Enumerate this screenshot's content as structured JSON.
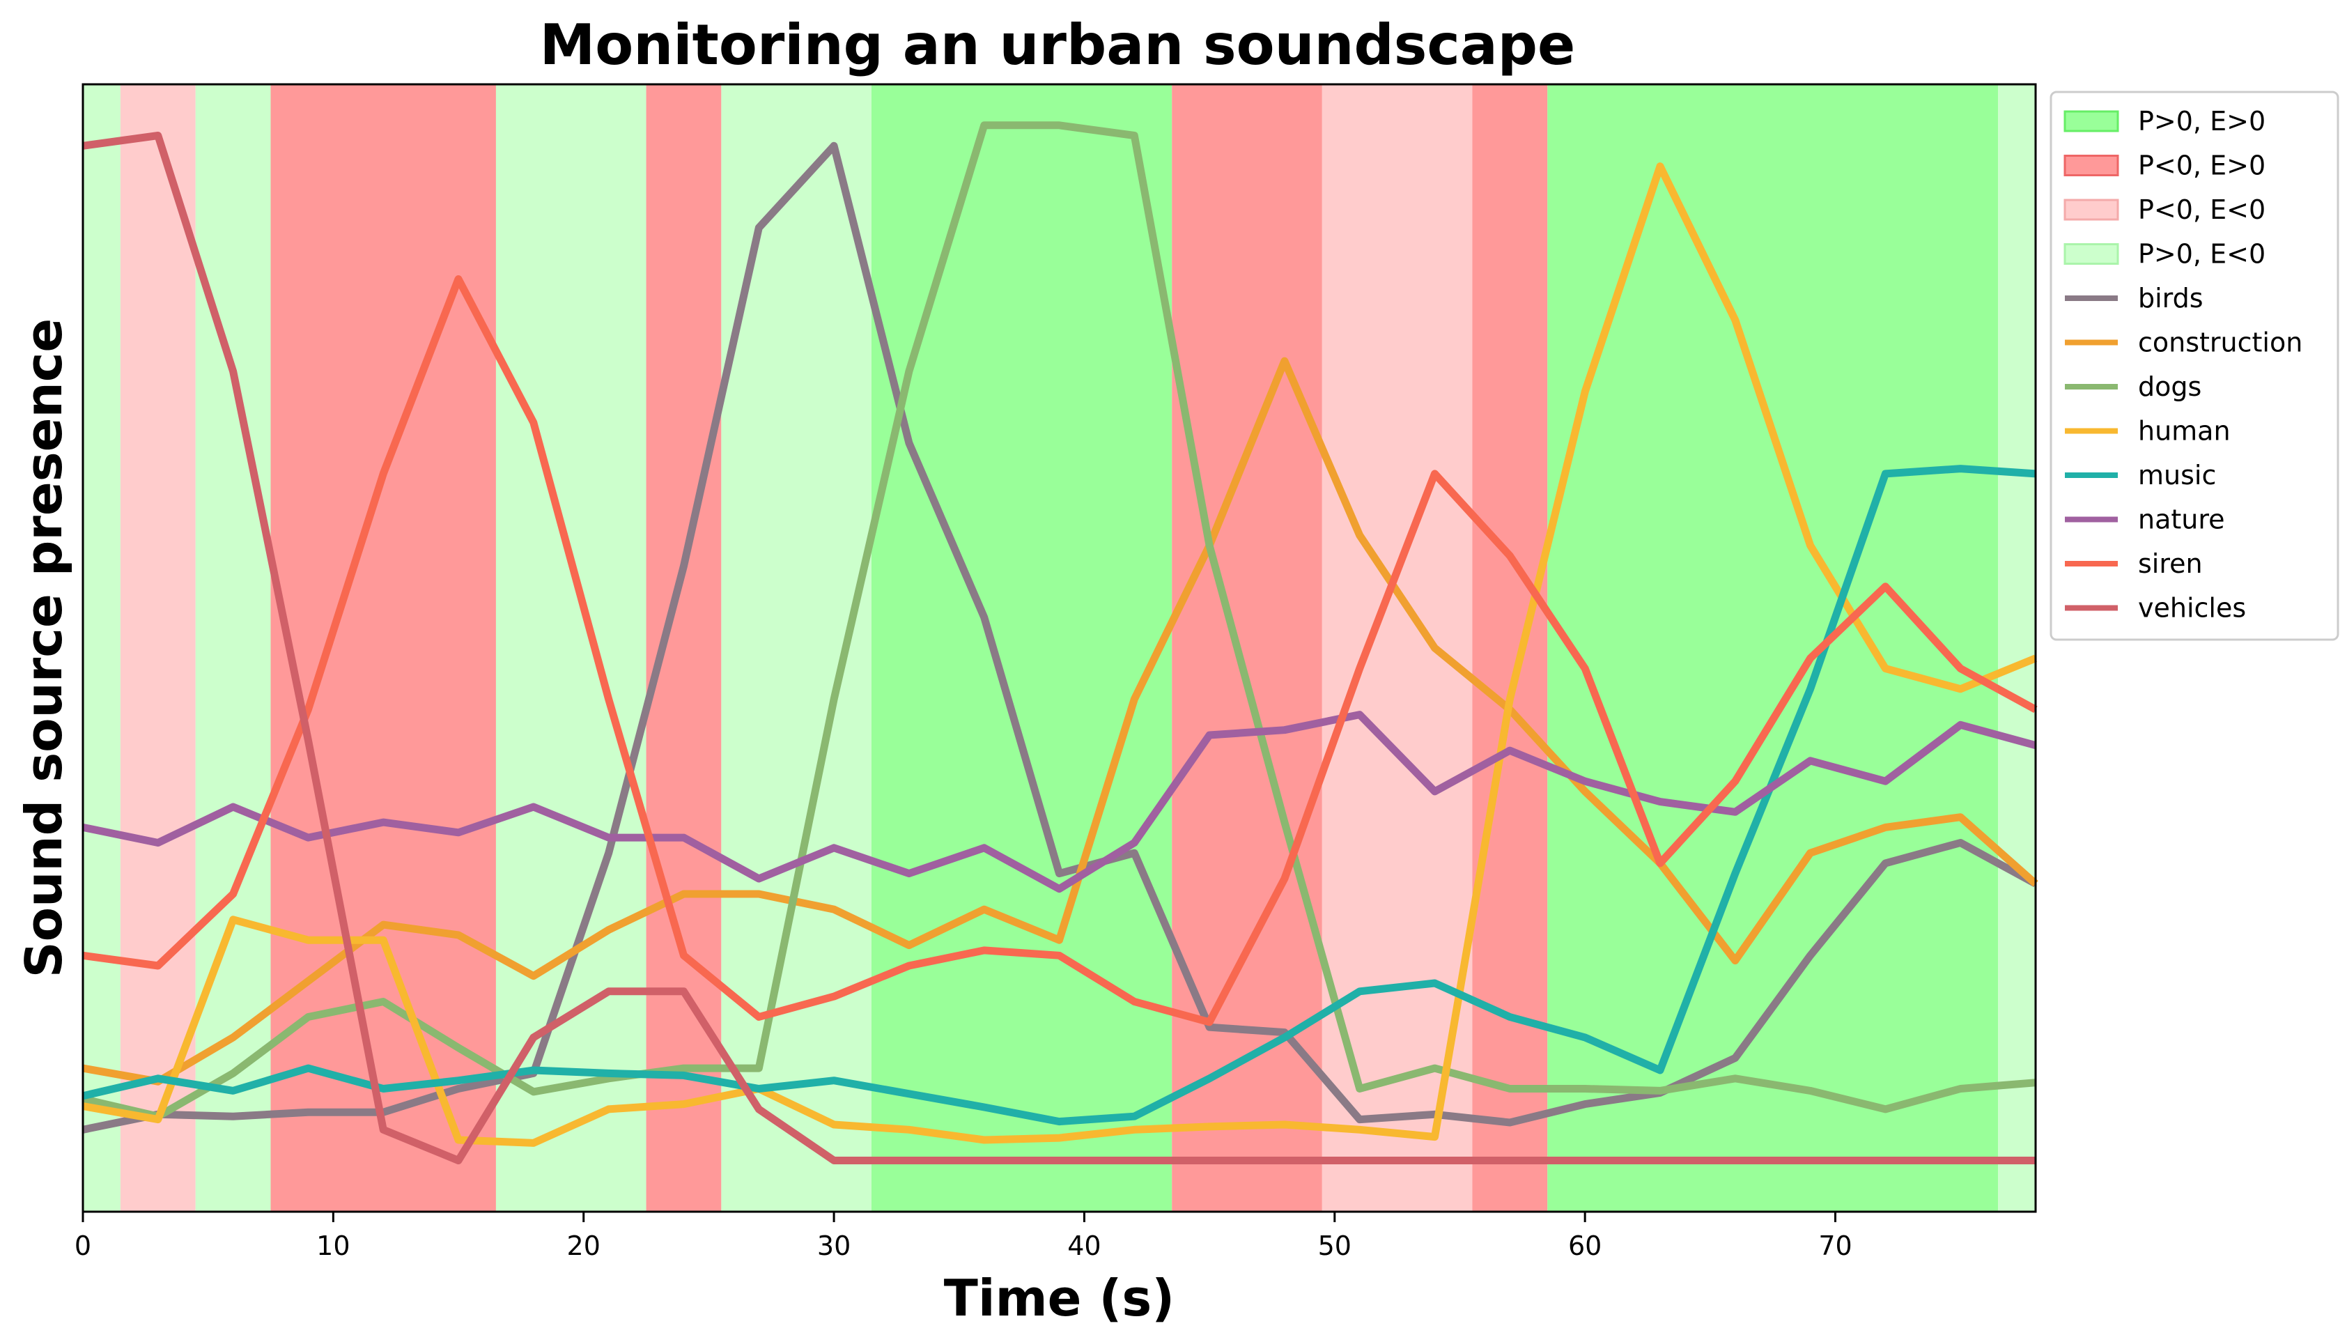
{
  "chart_data": {
    "type": "line",
    "title": "Monitoring an urban soundscape",
    "xlabel": "Time (s)",
    "ylabel": "Sound source presence",
    "xlim": [
      0,
      78
    ],
    "ylim": [
      -0.05,
      1.05
    ],
    "xticks": [
      0,
      10,
      20,
      30,
      40,
      50,
      60,
      70
    ],
    "grid": false,
    "legend_position": "outside-right-top",
    "x": [
      0,
      3,
      6,
      9,
      12,
      15,
      18,
      21,
      24,
      27,
      30,
      33,
      36,
      39,
      42,
      45,
      48,
      51,
      54,
      57,
      60,
      63,
      66,
      69,
      72,
      75,
      78
    ],
    "regions": [
      {
        "category": "P>0, E<0",
        "start": 0,
        "end": 1.5
      },
      {
        "category": "P<0, E<0",
        "start": 1.5,
        "end": 4.5
      },
      {
        "category": "P>0, E<0",
        "start": 4.5,
        "end": 7.5
      },
      {
        "category": "P<0, E>0",
        "start": 7.5,
        "end": 16.5
      },
      {
        "category": "P>0, E<0",
        "start": 16.5,
        "end": 22.5
      },
      {
        "category": "P<0, E>0",
        "start": 22.5,
        "end": 25.5
      },
      {
        "category": "P>0, E<0",
        "start": 25.5,
        "end": 31.5
      },
      {
        "category": "P>0, E>0",
        "start": 31.5,
        "end": 43.5
      },
      {
        "category": "P<0, E>0",
        "start": 43.5,
        "end": 49.5
      },
      {
        "category": "P<0, E<0",
        "start": 49.5,
        "end": 55.5
      },
      {
        "category": "P<0, E>0",
        "start": 55.5,
        "end": 58.5
      },
      {
        "category": "P>0, E>0",
        "start": 58.5,
        "end": 76.5
      },
      {
        "category": "P>0, E<0",
        "start": 76.5,
        "end": 78
      }
    ],
    "region_legend": [
      {
        "name": "P>0, E>0",
        "color": "#99ff99",
        "edge": "#66ee66"
      },
      {
        "name": "P<0, E>0",
        "color": "#ff9999",
        "edge": "#ee6666"
      },
      {
        "name": "P<0, E<0",
        "color": "#ffcccc",
        "edge": "#f4aaaa"
      },
      {
        "name": "P>0, E<0",
        "color": "#ccffcc",
        "edge": "#aaf4aa"
      }
    ],
    "series": [
      {
        "name": "birds",
        "color": "#8a7a86",
        "values": [
          0.03,
          0.045,
          0.043,
          0.047,
          0.047,
          0.07,
          0.085,
          0.3,
          0.58,
          0.91,
          0.99,
          0.7,
          0.53,
          0.28,
          0.3,
          0.13,
          0.125,
          0.04,
          0.045,
          0.037,
          0.055,
          0.066,
          0.1,
          0.2,
          0.29,
          0.31,
          0.27
        ]
      },
      {
        "name": "construction",
        "color": "#f0a030",
        "values": [
          0.09,
          0.077,
          0.12,
          0.175,
          0.23,
          0.22,
          0.18,
          0.225,
          0.26,
          0.26,
          0.245,
          0.21,
          0.245,
          0.215,
          0.45,
          0.6,
          0.78,
          0.61,
          0.5,
          0.44,
          0.36,
          0.29,
          0.195,
          0.3,
          0.325,
          0.335,
          0.27
        ]
      },
      {
        "name": "dogs",
        "color": "#8ab870",
        "values": [
          0.06,
          0.043,
          0.085,
          0.14,
          0.155,
          0.11,
          0.067,
          0.08,
          0.09,
          0.09,
          0.45,
          0.77,
          1.01,
          1.01,
          1.0,
          0.6,
          0.33,
          0.07,
          0.09,
          0.07,
          0.07,
          0.068,
          0.08,
          0.068,
          0.05,
          0.07,
          0.076
        ]
      },
      {
        "name": "human",
        "color": "#f8b830",
        "values": [
          0.053,
          0.04,
          0.235,
          0.215,
          0.215,
          0.02,
          0.017,
          0.05,
          0.055,
          0.07,
          0.035,
          0.03,
          0.02,
          0.022,
          0.03,
          0.033,
          0.035,
          0.03,
          0.023,
          0.45,
          0.75,
          0.97,
          0.82,
          0.6,
          0.48,
          0.46,
          0.49
        ]
      },
      {
        "name": "music",
        "color": "#20b0a8",
        "values": [
          0.063,
          0.08,
          0.068,
          0.09,
          0.07,
          0.078,
          0.088,
          0.085,
          0.083,
          0.07,
          0.078,
          0.065,
          0.052,
          0.038,
          0.043,
          0.08,
          0.12,
          0.165,
          0.173,
          0.14,
          0.12,
          0.088,
          0.28,
          0.46,
          0.67,
          0.675,
          0.67
        ]
      },
      {
        "name": "nature",
        "color": "#a060a0",
        "values": [
          0.325,
          0.31,
          0.345,
          0.315,
          0.33,
          0.32,
          0.345,
          0.315,
          0.315,
          0.275,
          0.305,
          0.28,
          0.305,
          0.265,
          0.31,
          0.415,
          0.42,
          0.435,
          0.36,
          0.4,
          0.37,
          0.35,
          0.34,
          0.39,
          0.37,
          0.425,
          0.405
        ]
      },
      {
        "name": "siren",
        "color": "#f86850",
        "values": [
          0.2,
          0.19,
          0.26,
          0.44,
          0.67,
          0.86,
          0.72,
          0.45,
          0.2,
          0.14,
          0.16,
          0.19,
          0.205,
          0.2,
          0.155,
          0.135,
          0.275,
          0.48,
          0.67,
          0.59,
          0.48,
          0.29,
          0.37,
          0.49,
          0.56,
          0.48,
          0.44
        ]
      },
      {
        "name": "vehicles",
        "color": "#d06068",
        "values": [
          0.99,
          1.0,
          0.77,
          0.41,
          0.03,
          0.0,
          0.12,
          0.165,
          0.165,
          0.05,
          0.0,
          0.0,
          0.0,
          0.0,
          0.0,
          0.0,
          0.0,
          0.0,
          0.0,
          0.0,
          0.0,
          0.0,
          0.0,
          0.0,
          0.0,
          0.0,
          0.0
        ]
      }
    ]
  }
}
